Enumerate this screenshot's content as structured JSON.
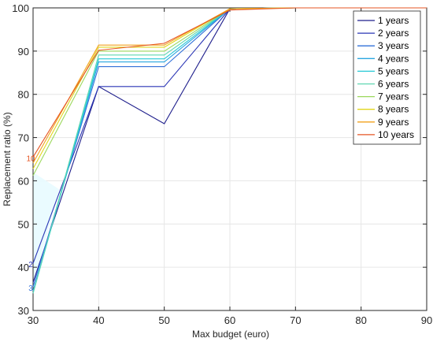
{
  "chart_data": {
    "type": "line",
    "title": "",
    "xlabel": "Max budget (euro)",
    "ylabel": "Replacement ratio (%)",
    "x": [
      30,
      40,
      50,
      60,
      70,
      80,
      90
    ],
    "xticks": [
      "30",
      "40",
      "50",
      "60",
      "70",
      "80",
      "90"
    ],
    "yticks": [
      "30",
      "40",
      "50",
      "60",
      "70",
      "80",
      "90",
      "100"
    ],
    "xlim": [
      30,
      90
    ],
    "ylim": [
      30,
      100
    ],
    "grid": true,
    "legend_position": "top-right",
    "series": [
      {
        "name": "1 years",
        "color": "#1f1f8c",
        "values": [
          36.5,
          81.8,
          73.2,
          99.8,
          100,
          100,
          100
        ],
        "end_label": ""
      },
      {
        "name": "2 years",
        "color": "#2a35b5",
        "values": [
          40.9,
          81.8,
          81.8,
          99.8,
          100,
          100,
          100
        ],
        "end_label": "2"
      },
      {
        "name": "3 years",
        "color": "#3170d8",
        "values": [
          35.5,
          86.4,
          86.4,
          99.8,
          100,
          100,
          100
        ],
        "end_label": "3"
      },
      {
        "name": "4 years",
        "color": "#2aa6e0",
        "values": [
          34.5,
          87.5,
          87.5,
          99.8,
          100,
          100,
          100
        ],
        "end_label": ""
      },
      {
        "name": "5 years",
        "color": "#26c9d6",
        "values": [
          34.0,
          88.2,
          88.2,
          99.8,
          100,
          100,
          100
        ],
        "end_label": ""
      },
      {
        "name": "6 years",
        "color": "#5ed6b0",
        "values": [
          34.0,
          89.1,
          89.1,
          99.8,
          100,
          100,
          100
        ],
        "end_label": ""
      },
      {
        "name": "7 years",
        "color": "#9bd85c",
        "values": [
          61.2,
          90.0,
          90.0,
          99.8,
          100,
          100,
          100
        ],
        "end_label": ""
      },
      {
        "name": "8 years",
        "color": "#e2d61c",
        "values": [
          62.8,
          90.9,
          90.9,
          99.8,
          100,
          100,
          100
        ],
        "end_label": ""
      },
      {
        "name": "9 years",
        "color": "#f2a21d",
        "values": [
          64.1,
          91.4,
          91.4,
          99.8,
          100,
          100,
          100
        ],
        "end_label": ""
      },
      {
        "name": "10 years",
        "color": "#e65523",
        "values": [
          65.5,
          90.2,
          91.8,
          99.5,
          100,
          100,
          100
        ],
        "end_label": "10"
      }
    ]
  }
}
